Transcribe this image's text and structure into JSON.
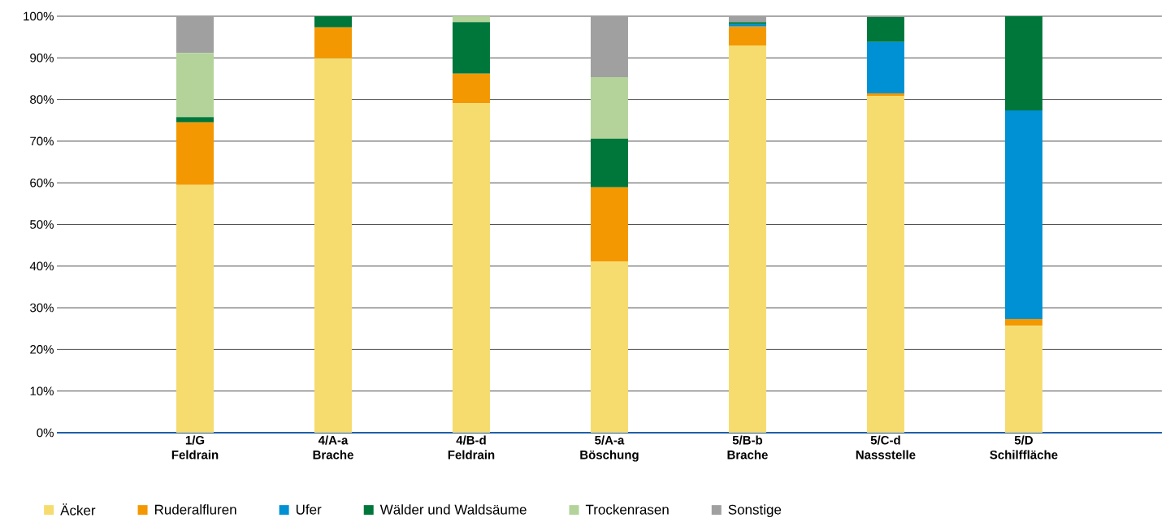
{
  "chart_data": {
    "type": "bar",
    "stacked": true,
    "categories": [
      "1/G Feldrain",
      "4/A-a Brache",
      "4/B-d Feldrain",
      "5/A-a Böschung",
      "5/B-b Brache",
      "5/C-d Nassstelle",
      "5/D Schilffläche"
    ],
    "series": [
      {
        "name": "Äcker",
        "color": "#f6dc6e",
        "values": [
          59.5,
          89.9,
          79.1,
          41.1,
          93.0,
          80.9,
          25.7
        ]
      },
      {
        "name": "Ruderalfluren",
        "color": "#f39800",
        "values": [
          15.0,
          7.4,
          7.1,
          17.8,
          4.5,
          0.6,
          1.6
        ]
      },
      {
        "name": "Ufer",
        "color": "#0090d4",
        "values": [
          0,
          0,
          0,
          0,
          0.6,
          12.3,
          50.1
        ]
      },
      {
        "name": "Wälder und Waldsäume",
        "color": "#00773a",
        "values": [
          1.3,
          2.7,
          12.4,
          11.7,
          0.5,
          6.0,
          22.6
        ]
      },
      {
        "name": "Trockenrasen",
        "color": "#b3d39a",
        "values": [
          15.4,
          0,
          1.4,
          14.8,
          0,
          0,
          0
        ]
      },
      {
        "name": "Sonstige",
        "color": "#a0a0a0",
        "values": [
          8.8,
          0,
          0,
          14.6,
          1.4,
          0.2,
          0
        ]
      }
    ],
    "ylim": [
      0,
      100
    ],
    "yticks": [
      {
        "value": 0,
        "label": "0%"
      },
      {
        "value": 10,
        "label": "10%"
      },
      {
        "value": 20,
        "label": "20%"
      },
      {
        "value": 30,
        "label": "30%"
      },
      {
        "value": 40,
        "label": "40%"
      },
      {
        "value": 50,
        "label": "50%"
      },
      {
        "value": 60,
        "label": "60%"
      },
      {
        "value": 70,
        "label": "70%"
      },
      {
        "value": 80,
        "label": "80%"
      },
      {
        "value": 90,
        "label": "90%"
      },
      {
        "value": 100,
        "label": "100%"
      }
    ],
    "grid": "y",
    "legend": "bottom"
  }
}
